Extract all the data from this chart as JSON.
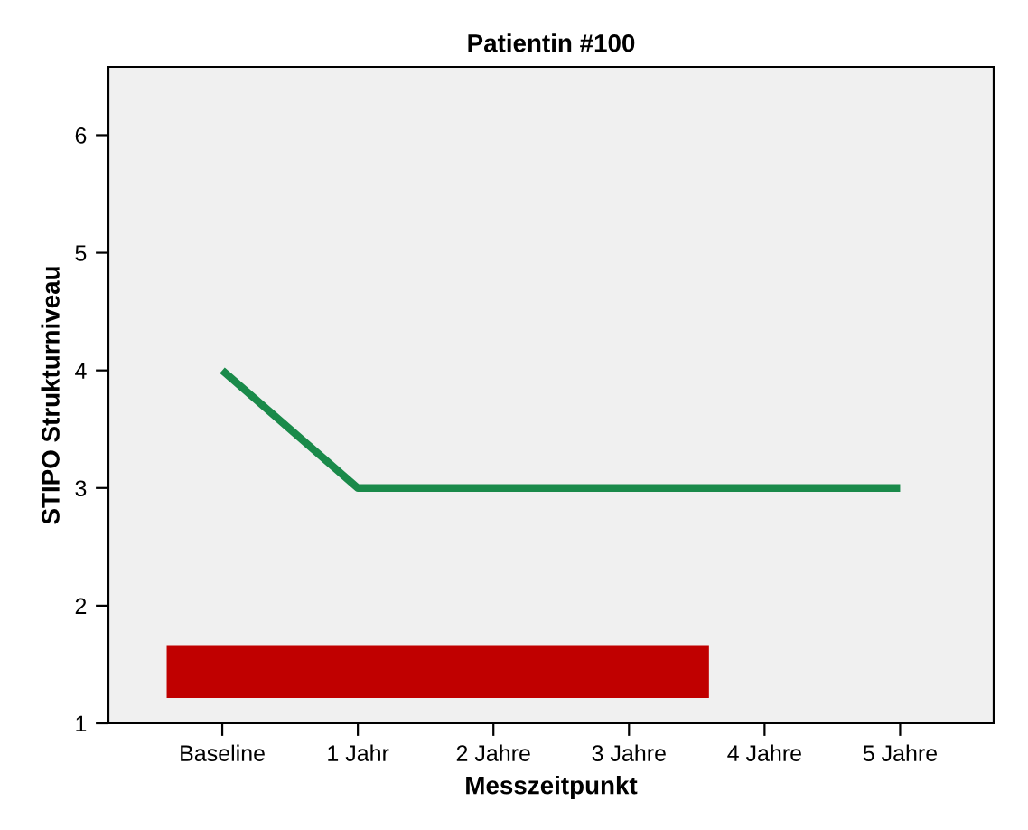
{
  "chart_data": {
    "type": "line",
    "title": "Patientin #100",
    "xlabel": "Messzeitpunkt",
    "ylabel": "STIPO Strukturniveau",
    "x": [
      0,
      1,
      2,
      3,
      4,
      5
    ],
    "xlim": [
      -0.84,
      5.69
    ],
    "xticks": [
      {
        "value": 0,
        "label": "Baseline"
      },
      {
        "value": 1,
        "label": "1 Jahr"
      },
      {
        "value": 2,
        "label": "2 Jahre"
      },
      {
        "value": 3,
        "label": "3 Jahre"
      },
      {
        "value": 4,
        "label": "4 Jahre"
      },
      {
        "value": 5,
        "label": "5 Jahre"
      }
    ],
    "ylim": [
      1,
      6.58
    ],
    "yticks": [
      1,
      2,
      3,
      4,
      5,
      6
    ],
    "series": [
      {
        "color": "#c00000",
        "x": [
          -0.41,
          3.59
        ],
        "values": [
          1.44,
          1.44
        ]
      },
      {
        "color": "#1a8a4a",
        "values": [
          4,
          3,
          3,
          3,
          3,
          3
        ]
      }
    ],
    "grid": false,
    "legend": false,
    "marker": "none",
    "line_style": "solid"
  }
}
